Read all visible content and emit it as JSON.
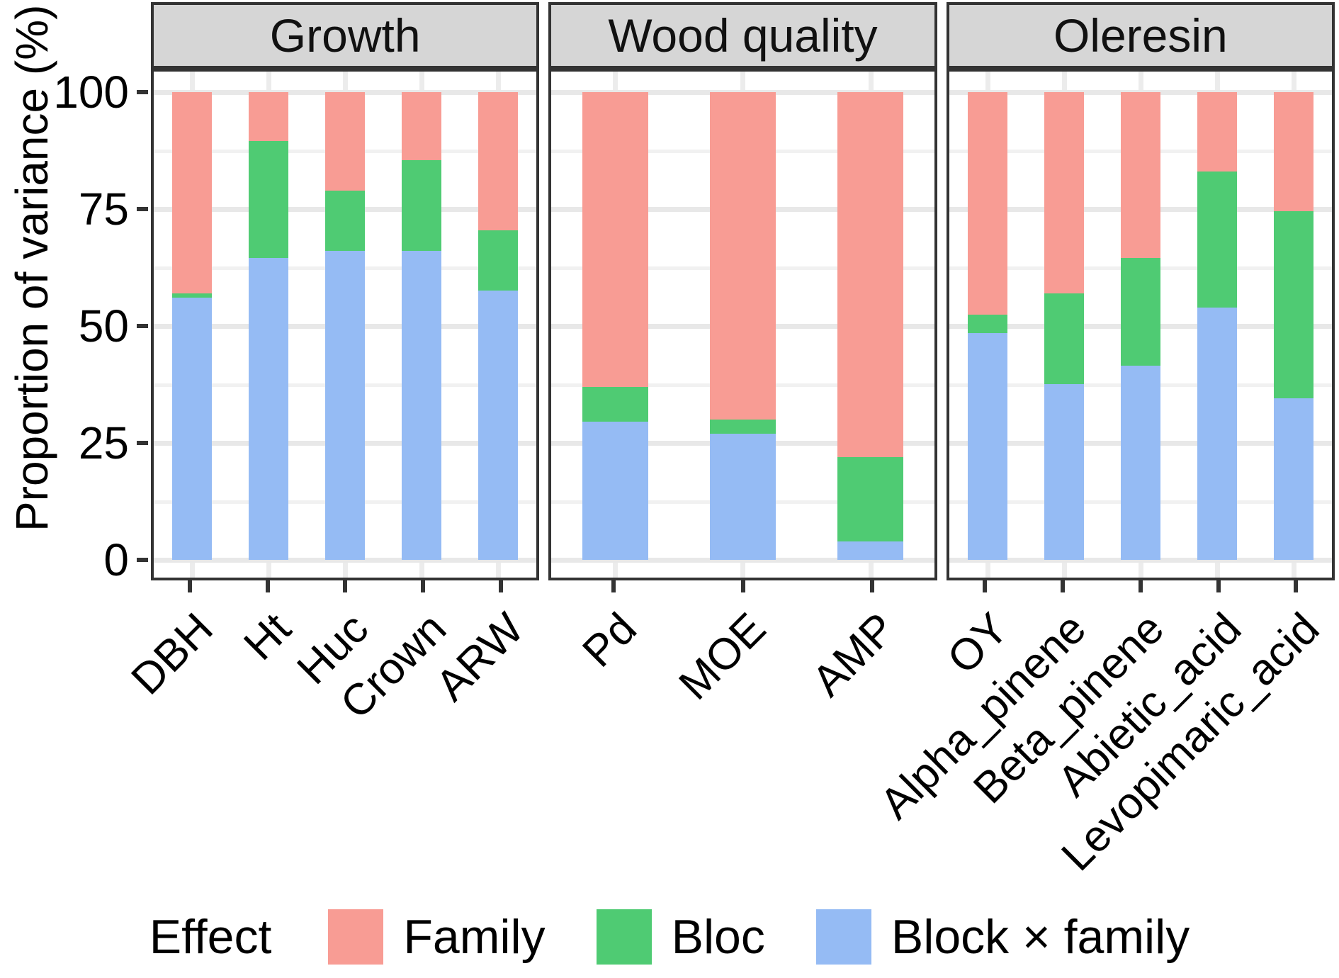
{
  "figure": {
    "y_axis_title": "Proportion of variance (%)",
    "legend_title": "Effect"
  },
  "chart_data": {
    "type": "bar",
    "stacked": true,
    "orientation": "vertical",
    "title": "",
    "xlabel": "",
    "ylabel": "Proportion of variance (%)",
    "ylim": [
      0,
      100
    ],
    "y_major_ticks": [
      100,
      75,
      50,
      25,
      0
    ],
    "y_minor_ticks": [
      87.5,
      62.5,
      37.5,
      12.5
    ],
    "grid": true,
    "legend_position": "bottom",
    "legend_title": "Effect",
    "legend_entries": [
      "Family",
      "Bloc",
      "Block × family"
    ],
    "stack_order_top_to_bottom": [
      "Family",
      "Bloc",
      "Block × family"
    ],
    "colors": {
      "Family": "#F89C94",
      "Bloc": "#4FCB73",
      "Block × family": "#95BBF4",
      "strip_background": "#D6D6D6",
      "panel_border": "#333333",
      "gridline_major": "#E8E8E8",
      "gridline_minor": "#F1F1F1"
    },
    "facets": [
      {
        "label": "Growth",
        "categories": [
          "DBH",
          "Ht",
          "Huc",
          "Crown",
          "ARW"
        ],
        "series": [
          {
            "name": "Family",
            "values": [
              43,
              10.5,
              21,
              14.5,
              29.5
            ]
          },
          {
            "name": "Bloc",
            "values": [
              1,
              25,
              13,
              19.5,
              13
            ]
          },
          {
            "name": "Block × family",
            "values": [
              56,
              64.5,
              66,
              66,
              57.5
            ]
          }
        ]
      },
      {
        "label": "Wood quality",
        "categories": [
          "Pd",
          "MOE",
          "AMP"
        ],
        "series": [
          {
            "name": "Family",
            "values": [
              63,
              70,
              78
            ]
          },
          {
            "name": "Bloc",
            "values": [
              7.5,
              3,
              18
            ]
          },
          {
            "name": "Block × family",
            "values": [
              29.5,
              27,
              4
            ]
          }
        ]
      },
      {
        "label": "Oleresin",
        "categories": [
          "OY",
          "Alpha_pinene",
          "Beta_pinene",
          "Abietic_acid",
          "Levopimaric_acid"
        ],
        "series": [
          {
            "name": "Family",
            "values": [
              47.5,
              43,
              35.5,
              17,
              25.5
            ]
          },
          {
            "name": "Bloc",
            "values": [
              4,
              19.5,
              23,
              29,
              40
            ]
          },
          {
            "name": "Block × family",
            "values": [
              48.5,
              37.5,
              41.5,
              54,
              34.5
            ]
          }
        ]
      }
    ]
  }
}
